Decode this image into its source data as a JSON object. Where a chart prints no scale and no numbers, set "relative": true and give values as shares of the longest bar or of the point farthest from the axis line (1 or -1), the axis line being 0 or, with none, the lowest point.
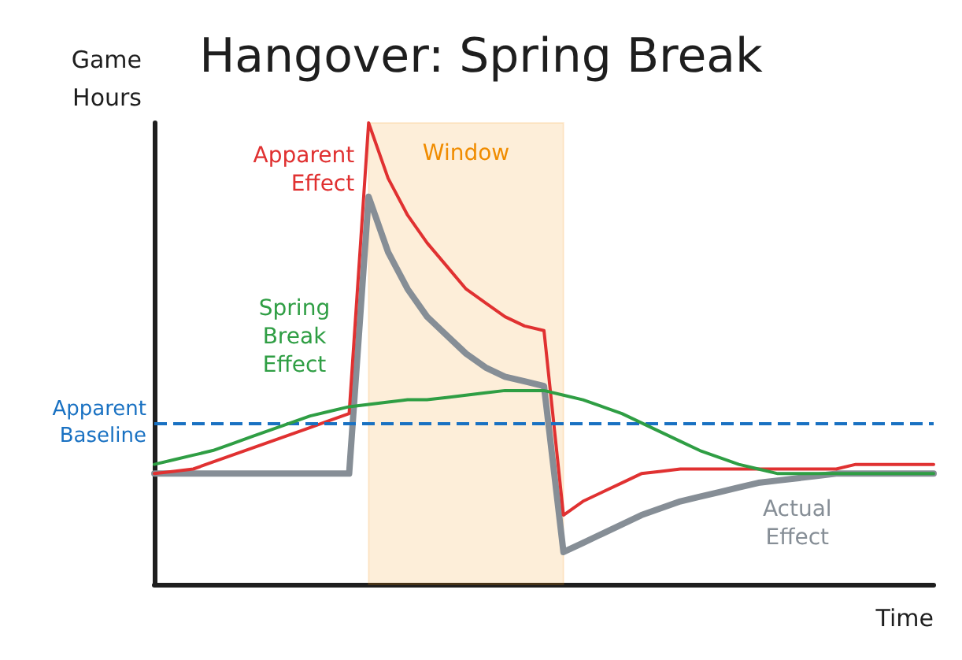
{
  "chart_data": {
    "type": "line",
    "title": "Hangover: Spring Break",
    "xlabel": "Time",
    "ylabel": "Game\nHours",
    "relative": true,
    "grid": false,
    "annotations": [
      "Window"
    ],
    "marker": "none",
    "categories": [
      null,
      null,
      null,
      null,
      null,
      null,
      null,
      null,
      null,
      null,
      null,
      null,
      null,
      null,
      null,
      null,
      null,
      null,
      null,
      null,
      null,
      null,
      null,
      null,
      null,
      null,
      null,
      null,
      null,
      null,
      null,
      null,
      null,
      null,
      null,
      null,
      null,
      null,
      null,
      null,
      null
    ],
    "series": [
      {
        "name": "Apparent\nEffect",
        "color": "#e03131",
        "values": [
          0.24,
          0.245,
          0.25,
          0.265,
          0.28,
          0.295,
          0.31,
          0.325,
          0.34,
          0.355,
          0.37,
          1.0,
          0.88,
          0.8,
          0.74,
          0.69,
          0.64,
          0.61,
          0.58,
          0.56,
          0.55,
          0.15,
          0.18,
          0.2,
          0.22,
          0.24,
          0.245,
          0.25,
          0.25,
          0.25,
          0.25,
          0.25,
          0.25,
          0.25,
          0.25,
          0.25,
          0.26,
          0.26,
          0.26,
          0.26,
          0.26
        ]
      },
      {
        "name": "Actual\nEffect",
        "color": "#868e96",
        "values": [
          0.24,
          0.24,
          0.24,
          0.24,
          0.24,
          0.24,
          0.24,
          0.24,
          0.24,
          0.24,
          0.24,
          0.84,
          0.72,
          0.64,
          0.58,
          0.54,
          0.5,
          0.47,
          0.45,
          0.44,
          0.43,
          0.07,
          0.09,
          0.11,
          0.13,
          0.15,
          0.165,
          0.18,
          0.19,
          0.2,
          0.21,
          0.22,
          0.225,
          0.23,
          0.235,
          0.24,
          0.24,
          0.24,
          0.24,
          0.24,
          0.24
        ]
      },
      {
        "name": "Spring\nBreak\nEffect",
        "color": "#2f9e44",
        "values": [
          0.26,
          0.27,
          0.28,
          0.29,
          0.305,
          0.32,
          0.335,
          0.35,
          0.365,
          0.375,
          0.385,
          0.39,
          0.395,
          0.4,
          0.4,
          0.405,
          0.41,
          0.415,
          0.42,
          0.42,
          0.42,
          0.41,
          0.4,
          0.385,
          0.37,
          0.35,
          0.33,
          0.31,
          0.29,
          0.275,
          0.26,
          0.25,
          0.24,
          0.24,
          0.24,
          0.24,
          0.24,
          0.24,
          0.24,
          0.24,
          0.24
        ]
      }
    ],
    "ref_lines": [
      {
        "axis": "y",
        "value": 0.35,
        "label": "Apparent\nBaseline",
        "color": "#1971c2",
        "line_style": "dashed"
      }
    ]
  }
}
